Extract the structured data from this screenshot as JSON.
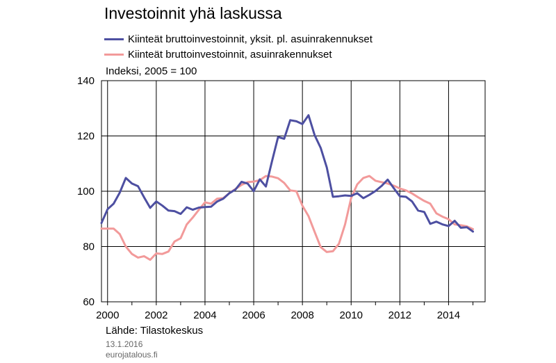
{
  "title": "Investoinnit yhä laskussa",
  "unit_label": "Indeksi, 2005 = 100",
  "source": "Lähde: Tilastokeskus",
  "date": "13.1.2016",
  "site": "eurojatalous.fi",
  "colors": {
    "series1": "#4d4fa1",
    "series2": "#f29a9a",
    "grid": "#000000"
  },
  "chart_data": {
    "type": "line",
    "title": "Investoinnit yhä laskussa",
    "ylabel": "Indeksi, 2005 = 100",
    "xlim": [
      1999.75,
      2015.5
    ],
    "ylim": [
      60,
      140
    ],
    "yticks": [
      60,
      80,
      100,
      120,
      140
    ],
    "xticks": [
      2000,
      2002,
      2004,
      2006,
      2008,
      2010,
      2012,
      2014
    ],
    "grid": true,
    "legend_position": "top",
    "series": [
      {
        "name": "Kiinteät bruttoinvestoinnit, yksit. pl. asuinrakennukset",
        "color": "#4d4fa1",
        "x": [
          1999.75,
          2000,
          2000.25,
          2000.5,
          2000.75,
          2001,
          2001.25,
          2001.5,
          2001.75,
          2002,
          2002.25,
          2002.5,
          2002.75,
          2003,
          2003.25,
          2003.5,
          2003.75,
          2004,
          2004.25,
          2004.5,
          2004.75,
          2005,
          2005.25,
          2005.5,
          2005.75,
          2006,
          2006.25,
          2006.5,
          2006.75,
          2007,
          2007.25,
          2007.5,
          2007.75,
          2008,
          2008.25,
          2008.5,
          2008.75,
          2009,
          2009.25,
          2009.5,
          2009.75,
          2010,
          2010.25,
          2010.5,
          2010.75,
          2011,
          2011.25,
          2011.5,
          2011.75,
          2012,
          2012.25,
          2012.5,
          2012.75,
          2013,
          2013.25,
          2013.5,
          2013.75,
          2014,
          2014.25,
          2014.5,
          2014.75,
          2015
        ],
        "y": [
          88.5,
          93.5,
          95.5,
          99.5,
          104.8,
          102.8,
          101.8,
          97.8,
          94.0,
          96.3,
          94.8,
          93.0,
          92.8,
          91.8,
          94.2,
          93.3,
          94.1,
          94.3,
          94.4,
          96.3,
          97.3,
          99.3,
          100.6,
          103.4,
          102.8,
          100.0,
          104.3,
          101.7,
          110.8,
          119.6,
          119.0,
          125.7,
          125.3,
          124.3,
          127.5,
          120.3,
          115.7,
          108.6,
          98.0,
          98.2,
          98.5,
          98.3,
          99.3,
          97.5,
          98.7,
          100.1,
          101.9,
          104.2,
          101.1,
          98.2,
          98.0,
          96.3,
          93.0,
          92.5,
          88.2,
          89.0,
          88.0,
          87.4,
          89.3,
          86.8,
          87.0,
          85.4
        ]
      },
      {
        "name": "Kiinteät bruttoinvestoinnit, asuinrakennukset",
        "color": "#f29a9a",
        "x": [
          1999.75,
          2000,
          2000.25,
          2000.5,
          2000.75,
          2001,
          2001.25,
          2001.5,
          2001.75,
          2002,
          2002.25,
          2002.5,
          2002.75,
          2003,
          2003.25,
          2003.5,
          2003.75,
          2004,
          2004.25,
          2004.5,
          2004.75,
          2005,
          2005.25,
          2005.5,
          2005.75,
          2006,
          2006.25,
          2006.5,
          2006.75,
          2007,
          2007.25,
          2007.5,
          2007.75,
          2008,
          2008.25,
          2008.5,
          2008.75,
          2009,
          2009.25,
          2009.5,
          2009.75,
          2010,
          2010.25,
          2010.5,
          2010.75,
          2011,
          2011.25,
          2011.5,
          2011.75,
          2012,
          2012.25,
          2012.5,
          2012.75,
          2013,
          2013.25,
          2013.5,
          2013.75,
          2014,
          2014.25,
          2014.5,
          2014.75,
          2015
        ],
        "y": [
          86.5,
          86.5,
          86.5,
          84.5,
          80.0,
          77.3,
          76.0,
          76.5,
          75.2,
          77.5,
          77.3,
          78.2,
          81.8,
          83.0,
          88.0,
          90.5,
          93.3,
          96.0,
          95.5,
          97.3,
          97.5,
          99.3,
          100.8,
          102.3,
          103.3,
          103.5,
          104.0,
          105.5,
          105.3,
          104.7,
          103.0,
          100.3,
          100.0,
          94.8,
          91.0,
          85.3,
          79.8,
          78.0,
          78.3,
          81.0,
          88.0,
          97.5,
          102.5,
          104.8,
          105.5,
          103.8,
          103.3,
          102.8,
          102.0,
          101.0,
          100.3,
          99.2,
          97.8,
          96.5,
          95.5,
          92.0,
          90.8,
          89.9,
          88.0,
          87.7,
          87.3,
          86.3
        ]
      }
    ]
  }
}
